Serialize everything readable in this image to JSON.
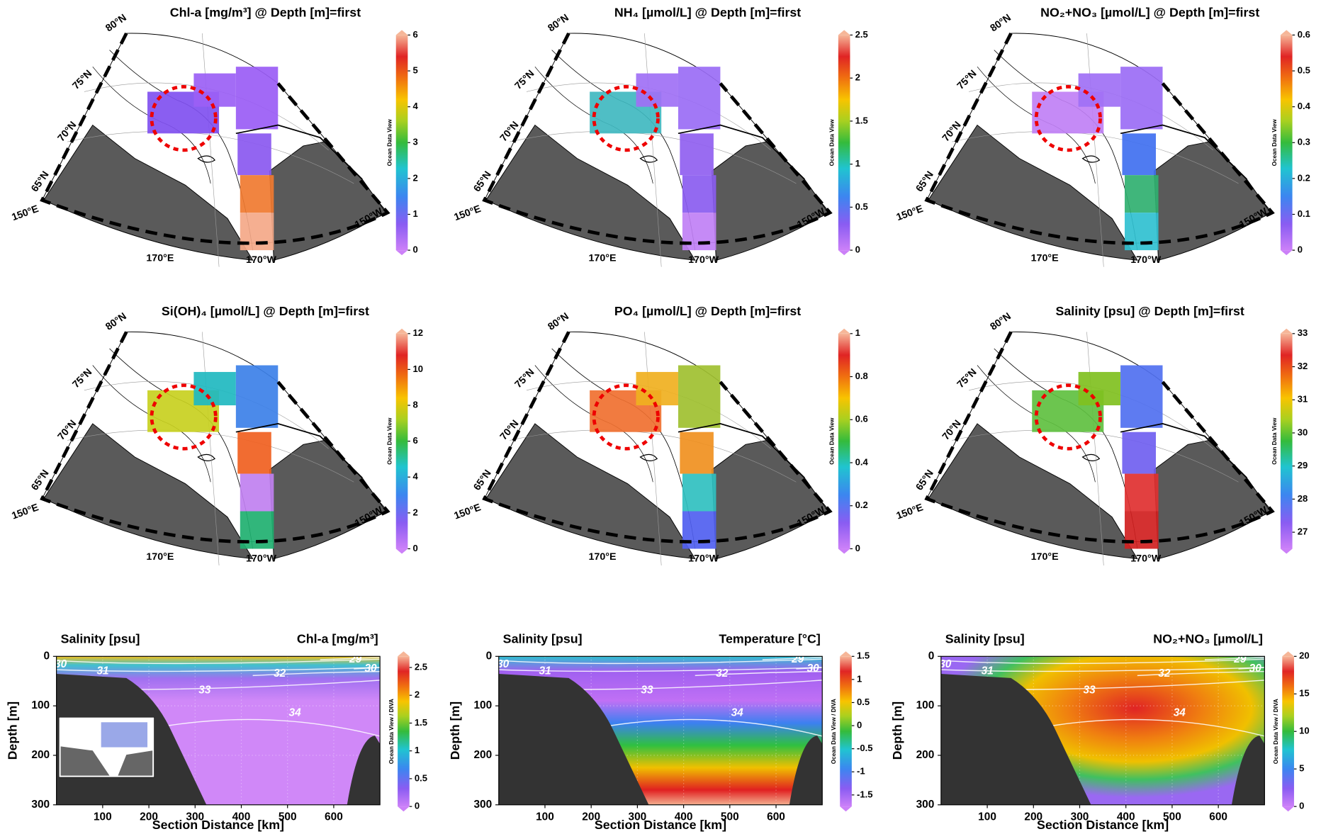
{
  "maps": [
    {
      "title": "Chl-a [mg/m³] @ Depth [m]=first",
      "lim": [
        0,
        6
      ],
      "ticks": [
        0,
        1,
        2,
        3,
        4,
        5,
        6
      ]
    },
    {
      "title": "NH₄ [µmol/L] @ Depth [m]=first",
      "lim": [
        0,
        2.5
      ],
      "ticks": [
        0,
        0.5,
        1,
        1.5,
        2,
        2.5
      ]
    },
    {
      "title": "NO₂+NO₃ [µmol/L] @ Depth [m]=first",
      "lim": [
        0,
        0.6
      ],
      "ticks": [
        0,
        0.1,
        0.2,
        0.3,
        0.4,
        0.5,
        0.6
      ]
    },
    {
      "title": "Si(OH)₄ [µmol/L] @ Depth [m]=first",
      "lim": [
        0,
        12
      ],
      "ticks": [
        0,
        2,
        4,
        6,
        8,
        10,
        12
      ]
    },
    {
      "title": "PO₄ [µmol/L] @ Depth [m]=first",
      "lim": [
        0,
        1
      ],
      "ticks": [
        0,
        0.2,
        0.4,
        0.6,
        0.8,
        1
      ]
    },
    {
      "title": "Salinity [psu] @ Depth [m]=first",
      "lim": [
        26.5,
        33
      ],
      "ticks": [
        27,
        28,
        29,
        30,
        31,
        32,
        33
      ]
    }
  ],
  "map_labels": {
    "latitudes": [
      "80°N",
      "75°N",
      "70°N",
      "65°N"
    ],
    "longitudes": [
      "150°E",
      "170°E",
      "170°W",
      "150°W"
    ]
  },
  "map_credit": "Ocean Data View",
  "sections": [
    {
      "left_title": "Salinity [psu]",
      "right_title": "Chl-a [mg/m³]",
      "lim": [
        0,
        2.7
      ],
      "ticks": [
        0,
        0.5,
        1,
        1.5,
        2,
        2.5
      ]
    },
    {
      "left_title": "Salinity [psu]",
      "right_title": "Temperature [°C]",
      "lim": [
        -1.75,
        1.5
      ],
      "ticks": [
        -1.5,
        -1,
        -0.5,
        0,
        0.5,
        1,
        1.5
      ]
    },
    {
      "left_title": "Salinity [psu]",
      "right_title": "NO₂+NO₃ [µmol/L]",
      "lim": [
        0,
        20
      ],
      "ticks": [
        0,
        5,
        10,
        15,
        20
      ]
    }
  ],
  "section_axes": {
    "xlabel": "Section Distance [km]",
    "ylabel": "Depth [m]",
    "xlim": [
      0,
      700
    ],
    "xticks": [
      100,
      200,
      300,
      400,
      500,
      600
    ],
    "ylim": [
      0,
      300
    ],
    "yticks": [
      0,
      100,
      200,
      300
    ]
  },
  "contour_labels": [
    "30",
    "31",
    "33",
    "32",
    "34",
    "29",
    "30"
  ],
  "section_credit": "Ocean Data View / DIVA"
}
